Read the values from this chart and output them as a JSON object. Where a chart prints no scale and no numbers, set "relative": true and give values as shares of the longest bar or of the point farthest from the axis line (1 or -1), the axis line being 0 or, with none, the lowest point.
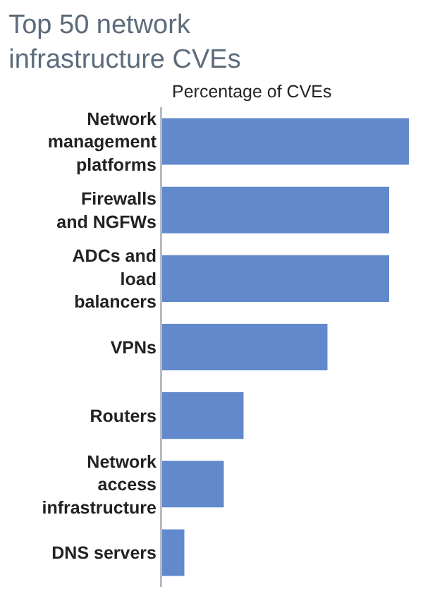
{
  "chart_data": {
    "type": "bar",
    "orientation": "horizontal",
    "relative": true,
    "title": "Top 50 network infrastructure CVEs",
    "xlabel": "Percentage of CVEs",
    "categories": [
      "Network management platforms",
      "Firewalls and NGFWs",
      "ADCs and load balancers",
      "VPNs",
      "Routers",
      "Network access infrastructure",
      "DNS servers"
    ],
    "values": [
      1,
      0.92,
      0.92,
      0.67,
      0.33,
      0.25,
      0.09
    ],
    "color": "#6189cc",
    "grid": false
  }
}
